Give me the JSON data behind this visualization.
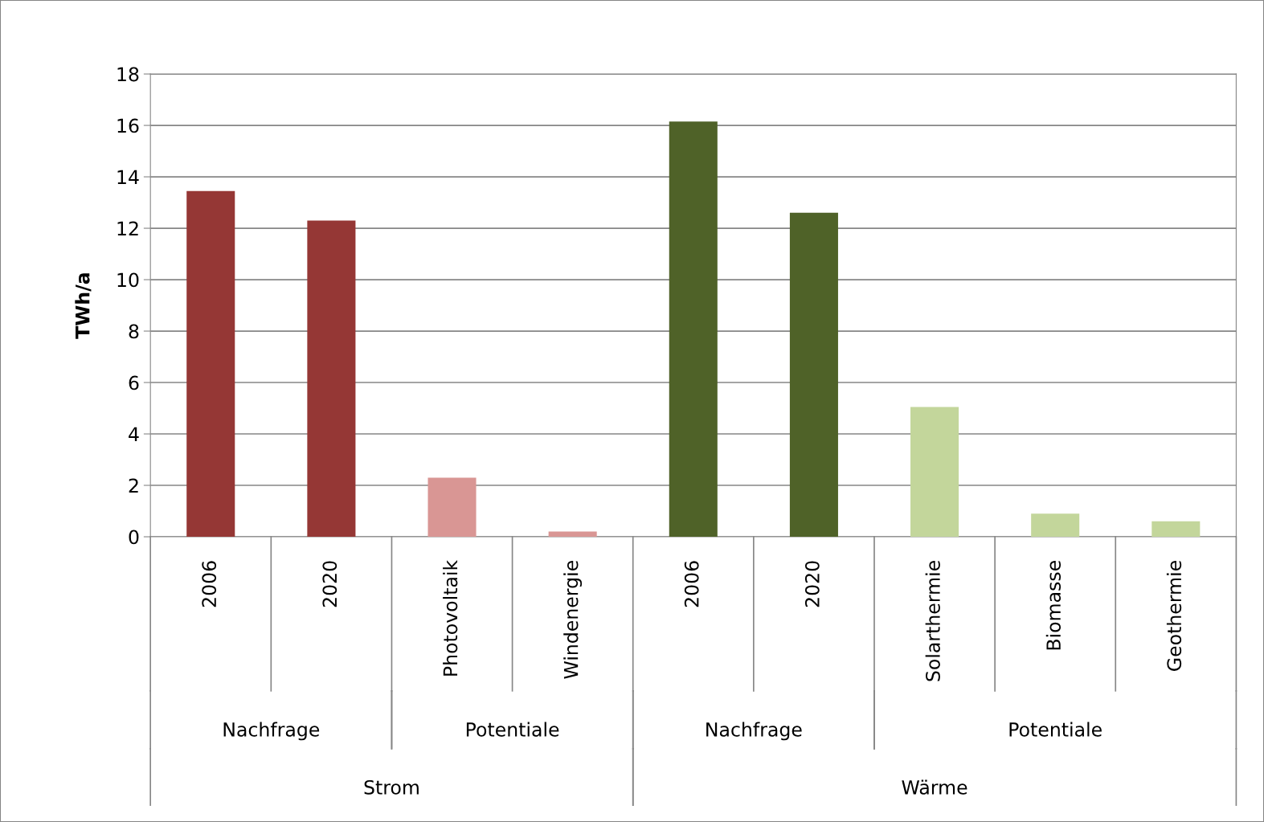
{
  "chart_data": {
    "type": "bar",
    "ylabel": "TWh/a",
    "categories": [
      "2006",
      "2020",
      "Photovoltaik",
      "Windenergie",
      "2006",
      "2020",
      "Solarthermie",
      "Biomasse",
      "Geothermie"
    ],
    "values": [
      13.45,
      12.3,
      2.3,
      0.2,
      16.15,
      12.6,
      5.05,
      0.9,
      0.6
    ],
    "colors": [
      "#953735",
      "#953735",
      "#d99694",
      "#d99694",
      "#4f6228",
      "#4f6228",
      "#c3d69b",
      "#c3d69b",
      "#c3d69b"
    ],
    "ylim": [
      0,
      18
    ],
    "yticks": [
      0,
      2,
      4,
      6,
      8,
      10,
      12,
      14,
      16,
      18
    ],
    "grid": "y",
    "annotations": [
      "Nachfrage",
      "Potentiale",
      "Nachfrage",
      "Potentiale",
      "Strom",
      "Wärme"
    ]
  }
}
